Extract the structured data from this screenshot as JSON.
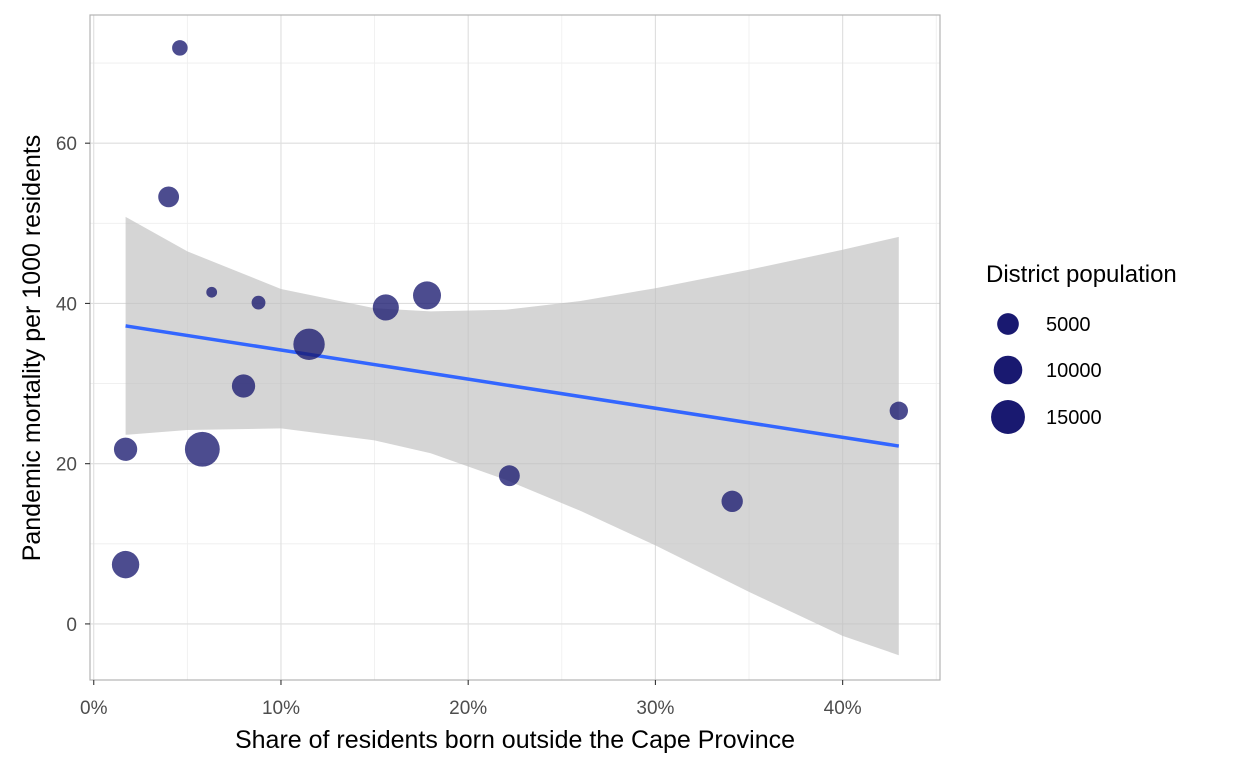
{
  "chart_data": {
    "type": "scatter",
    "title": "",
    "xlabel": "Share of residents born outside the Cape Province",
    "ylabel": "Pandemic mortality per 1000 residents",
    "xlim": [
      -0.002,
      0.452
    ],
    "ylim": [
      -7,
      76
    ],
    "x_ticks": [
      0,
      0.1,
      0.2,
      0.3,
      0.4
    ],
    "x_tick_labels": [
      "0%",
      "10%",
      "20%",
      "30%",
      "40%"
    ],
    "y_ticks": [
      0,
      20,
      40,
      60
    ],
    "y_tick_labels": [
      "0",
      "20",
      "40",
      "60"
    ],
    "grid": true,
    "legend": {
      "title": "District population",
      "position": "right",
      "entries": [
        {
          "label": "5000",
          "size": 5000
        },
        {
          "label": "10000",
          "size": 10000
        },
        {
          "label": "15000",
          "size": 15000
        }
      ]
    },
    "colors": {
      "point": "#191970",
      "trend_line": "#3366FF",
      "confidence_band": "#BEBEBE",
      "panel_border": "#B3B3B3",
      "grid": "#E5E5E5"
    },
    "points": [
      {
        "x": 0.046,
        "y": 71.9,
        "size": 2000
      },
      {
        "x": 0.04,
        "y": 53.3,
        "size": 4500
      },
      {
        "x": 0.063,
        "y": 41.4,
        "size": 600
      },
      {
        "x": 0.088,
        "y": 40.1,
        "size": 1400
      },
      {
        "x": 0.178,
        "y": 41.0,
        "size": 9500
      },
      {
        "x": 0.156,
        "y": 39.5,
        "size": 8000
      },
      {
        "x": 0.115,
        "y": 34.9,
        "size": 12500
      },
      {
        "x": 0.08,
        "y": 29.7,
        "size": 6000
      },
      {
        "x": 0.017,
        "y": 21.8,
        "size": 6000
      },
      {
        "x": 0.058,
        "y": 21.8,
        "size": 16000
      },
      {
        "x": 0.222,
        "y": 18.5,
        "size": 4500
      },
      {
        "x": 0.341,
        "y": 15.3,
        "size": 4800
      },
      {
        "x": 0.017,
        "y": 7.4,
        "size": 9000
      },
      {
        "x": 0.43,
        "y": 26.6,
        "size": 3200
      }
    ],
    "trend": {
      "x": [
        0.017,
        0.43
      ],
      "y": [
        37.2,
        22.2
      ]
    },
    "confidence_band": {
      "x": [
        0.017,
        0.05,
        0.1,
        0.15,
        0.18,
        0.22,
        0.26,
        0.3,
        0.35,
        0.4,
        0.43
      ],
      "upper": [
        50.8,
        46.5,
        41.8,
        39.4,
        39.0,
        39.2,
        40.3,
        41.9,
        44.2,
        46.7,
        48.3
      ],
      "lower": [
        23.6,
        24.2,
        24.4,
        22.9,
        21.3,
        18.0,
        14.1,
        9.8,
        4.0,
        -1.5,
        -3.9
      ]
    }
  }
}
